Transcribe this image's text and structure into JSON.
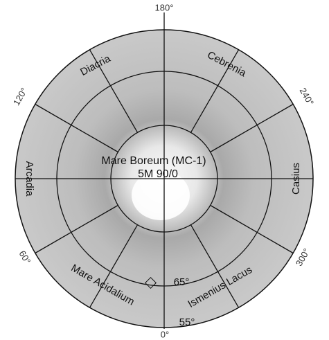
{
  "longitudes": [
    "180°",
    "120°",
    "240°",
    "60°",
    "300°",
    "0°"
  ],
  "regions": [
    "Diacria",
    "Cebrenia",
    "Arcadia",
    "Casius",
    "Mare Acidalium",
    "Ismenius Lacus"
  ],
  "center": {
    "title": "Mare Boreum (MC-1)",
    "code": "5M 90/0"
  },
  "latitudes": [
    "65°",
    "55°"
  ]
}
